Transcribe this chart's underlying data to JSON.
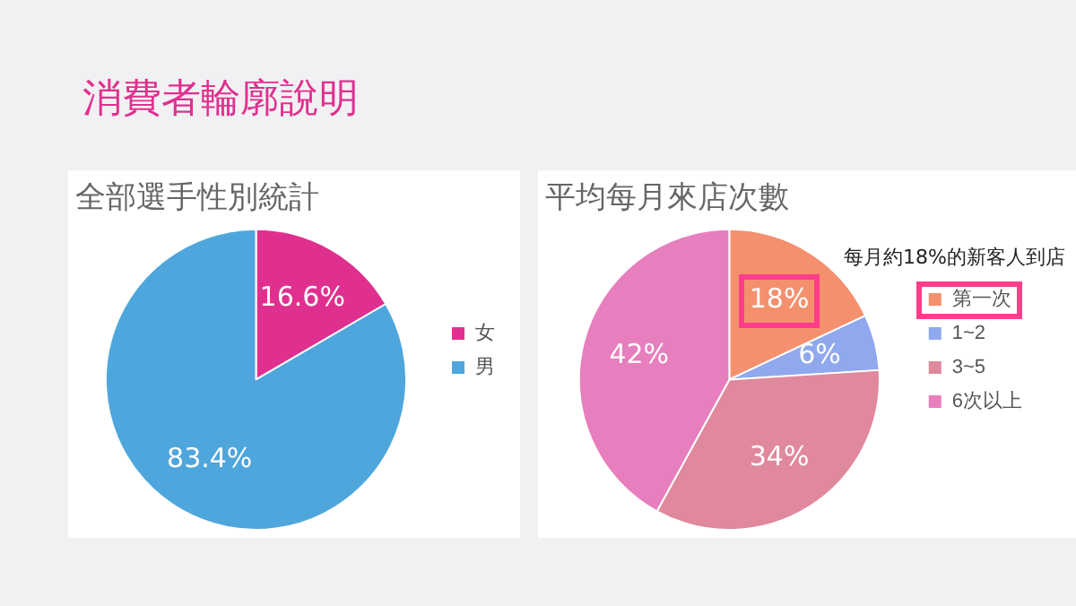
{
  "chart_data": [
    {
      "type": "pie",
      "title": "全部選手性別統計",
      "annotations": [
        "消費者輪廓說明"
      ],
      "categories": [
        "女",
        "男"
      ],
      "values": [
        16.6,
        83.4
      ],
      "colors": [
        "#e0308f",
        "#4ea6dc"
      ],
      "value_labels": [
        "16.6%",
        "83.4%"
      ],
      "legend": "right"
    },
    {
      "type": "pie",
      "title": "平均每月來店次數",
      "annotations": [
        "每月約18%的新客人到店"
      ],
      "categories": [
        "第一次",
        "1~2",
        "3~5",
        "6次以上"
      ],
      "values": [
        18,
        6,
        34,
        42
      ],
      "colors": [
        "#f4906e",
        "#8fa8ee",
        "#e0889c",
        "#e77ebd"
      ],
      "value_labels": [
        "18%",
        "6%",
        "34%",
        "42%"
      ],
      "legend": "right"
    }
  ]
}
